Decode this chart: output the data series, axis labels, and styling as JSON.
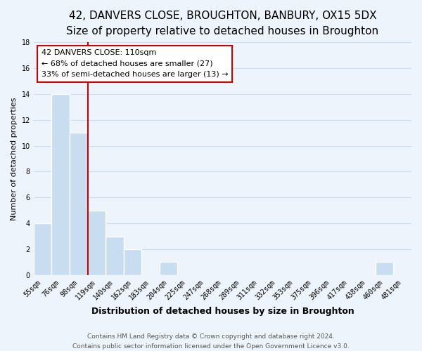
{
  "title": "42, DANVERS CLOSE, BROUGHTON, BANBURY, OX15 5DX",
  "subtitle": "Size of property relative to detached houses in Broughton",
  "xlabel": "Distribution of detached houses by size in Broughton",
  "ylabel": "Number of detached properties",
  "footer_line1": "Contains HM Land Registry data © Crown copyright and database right 2024.",
  "footer_line2": "Contains public sector information licensed under the Open Government Licence v3.0.",
  "bin_labels": [
    "55sqm",
    "76sqm",
    "98sqm",
    "119sqm",
    "140sqm",
    "162sqm",
    "183sqm",
    "204sqm",
    "225sqm",
    "247sqm",
    "268sqm",
    "289sqm",
    "311sqm",
    "332sqm",
    "353sqm",
    "375sqm",
    "396sqm",
    "417sqm",
    "438sqm",
    "460sqm",
    "481sqm"
  ],
  "bar_values": [
    4,
    14,
    11,
    5,
    3,
    2,
    0,
    1,
    0,
    0,
    0,
    0,
    0,
    0,
    0,
    0,
    0,
    0,
    0,
    1,
    0
  ],
  "bar_color": "#c8ddef",
  "bar_edge_color": "#ffffff",
  "vline_color": "#cc0000",
  "annotation_text_line1": "42 DANVERS CLOSE: 110sqm",
  "annotation_text_line2": "← 68% of detached houses are smaller (27)",
  "annotation_text_line3": "33% of semi-detached houses are larger (13) →",
  "annotation_box_color": "white",
  "annotation_box_edge_color": "#cc0000",
  "ylim": [
    0,
    18
  ],
  "yticks": [
    0,
    2,
    4,
    6,
    8,
    10,
    12,
    14,
    16,
    18
  ],
  "grid_color": "#c8ddef",
  "background_color": "#eef4fb",
  "title_fontsize": 11,
  "subtitle_fontsize": 9.5,
  "xlabel_fontsize": 9,
  "ylabel_fontsize": 8,
  "tick_fontsize": 7,
  "annotation_fontsize": 8,
  "footer_fontsize": 6.5
}
